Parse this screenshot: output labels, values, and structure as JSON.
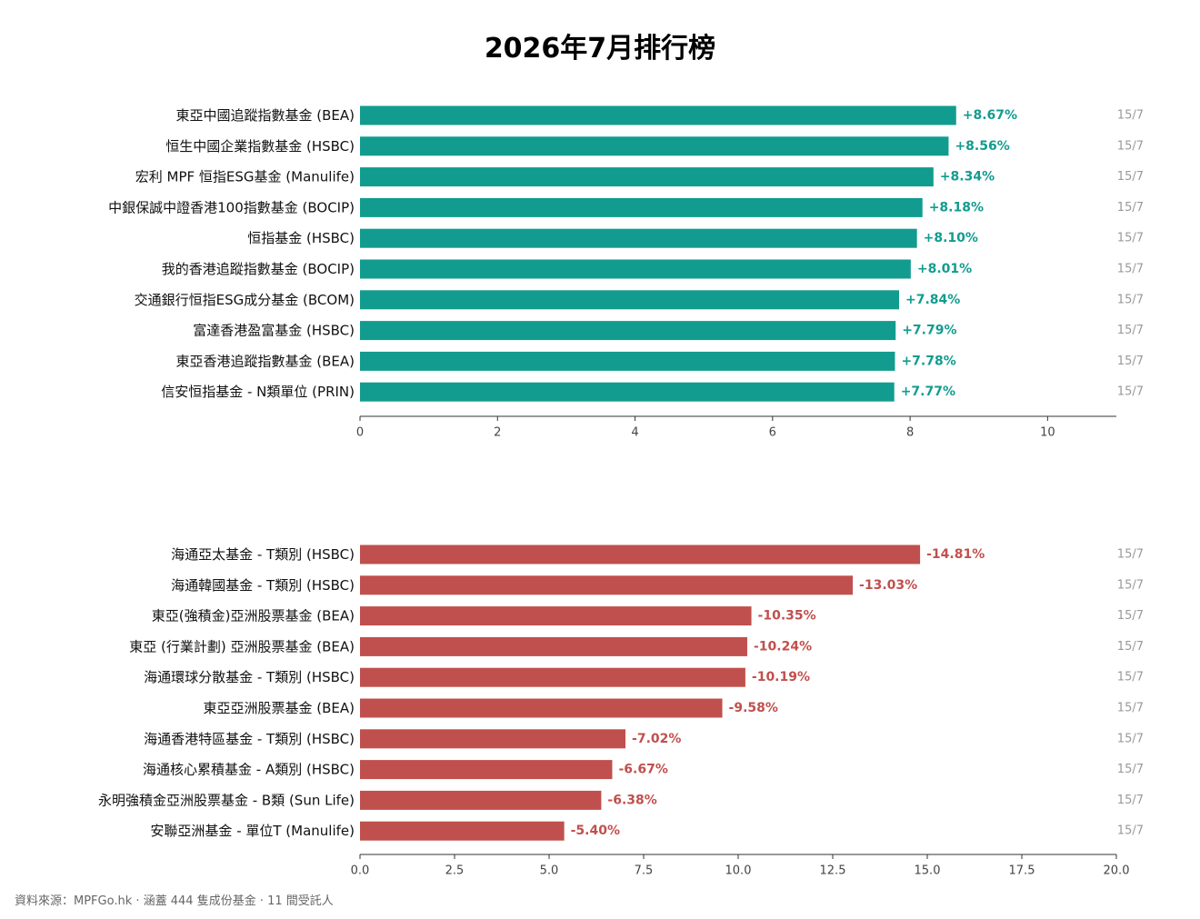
{
  "title": "2026年7月排行榜",
  "footer": "資料來源：MPFGo.hk · 涵蓋 444 隻成份基金 · 11 間受託人",
  "colors": {
    "top": "#119c8f",
    "bottom": "#c0504d",
    "date": "#999999",
    "axis": "#333333"
  },
  "chart_data": [
    {
      "type": "bar",
      "orientation": "horizontal",
      "categories": [
        "東亞中國追蹤指數基金 (BEA)",
        "恒生中國企業指數基金 (HSBC)",
        "宏利 MPF 恒指ESG基金 (Manulife)",
        "中銀保誠中證香港100指數基金 (BOCIP)",
        "恒指基金 (HSBC)",
        "我的香港追蹤指數基金 (BOCIP)",
        "交通銀行恒指ESG成分基金 (BCOM)",
        "富達香港盈富基金 (HSBC)",
        "東亞香港追蹤指數基金 (BEA)",
        "信安恒指基金 - N類單位 (PRIN)"
      ],
      "values": [
        8.67,
        8.56,
        8.34,
        8.18,
        8.1,
        8.01,
        7.84,
        7.79,
        7.78,
        7.77
      ],
      "value_labels": [
        "+8.67%",
        "+8.56%",
        "+8.34%",
        "+8.18%",
        "+8.10%",
        "+8.01%",
        "+7.84%",
        "+7.79%",
        "+7.78%",
        "+7.77%"
      ],
      "dates": [
        "15/7",
        "15/7",
        "15/7",
        "15/7",
        "15/7",
        "15/7",
        "15/7",
        "15/7",
        "15/7",
        "15/7"
      ],
      "xlim": [
        0,
        11
      ],
      "xticks": [
        0,
        2,
        4,
        6,
        8,
        10
      ],
      "xtick_labels": [
        "0",
        "2",
        "4",
        "6",
        "8",
        "10"
      ]
    },
    {
      "type": "bar",
      "orientation": "horizontal",
      "categories": [
        "海通亞太基金 - T類別 (HSBC)",
        "海通韓國基金 - T類別 (HSBC)",
        "東亞(強積金)亞洲股票基金 (BEA)",
        "東亞 (行業計劃) 亞洲股票基金 (BEA)",
        "海通環球分散基金 - T類別 (HSBC)",
        "東亞亞洲股票基金 (BEA)",
        "海通香港特區基金 - T類別 (HSBC)",
        "海通核心累積基金 - A類別 (HSBC)",
        "永明強積金亞洲股票基金 - B類 (Sun Life)",
        "安聯亞洲基金 - 單位T (Manulife)"
      ],
      "values": [
        14.81,
        13.03,
        10.35,
        10.24,
        10.19,
        9.58,
        7.02,
        6.67,
        6.38,
        5.4
      ],
      "value_labels": [
        "-14.81%",
        "-13.03%",
        "-10.35%",
        "-10.24%",
        "-10.19%",
        "-9.58%",
        "-7.02%",
        "-6.67%",
        "-6.38%",
        "-5.40%"
      ],
      "dates": [
        "15/7",
        "15/7",
        "15/7",
        "15/7",
        "15/7",
        "15/7",
        "15/7",
        "15/7",
        "15/7",
        "15/7"
      ],
      "xlim": [
        0,
        20
      ],
      "xticks": [
        0,
        2.5,
        5,
        7.5,
        10,
        12.5,
        15,
        17.5,
        20
      ],
      "xtick_labels": [
        "0.0",
        "2.5",
        "5.0",
        "7.5",
        "10.0",
        "12.5",
        "15.0",
        "17.5",
        "20.0"
      ]
    }
  ]
}
